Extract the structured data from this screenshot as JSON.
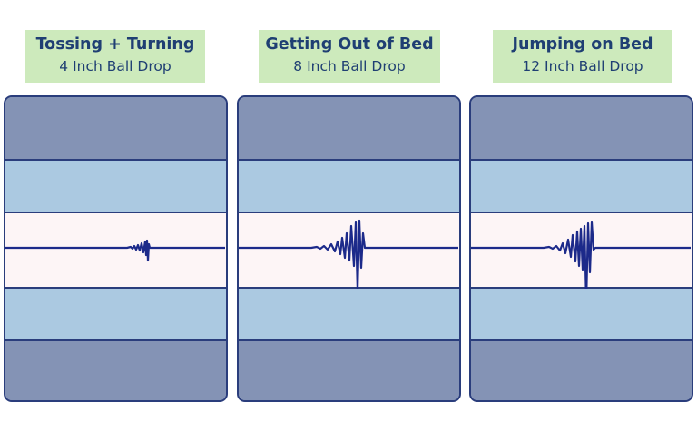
{
  "columns": [
    {
      "title": "Tossing + Turning",
      "subtitle": "4 Inch Ball Drop",
      "intensity": "low"
    },
    {
      "title": "Getting Out of Bed",
      "subtitle": "8 Inch Ball Drop",
      "intensity": "medium"
    },
    {
      "title": "Jumping on Bed",
      "subtitle": "12 Inch Ball Drop",
      "intensity": "high"
    }
  ],
  "colors": {
    "label_bg": "#cdeabc",
    "label_text": "#1f3f73",
    "outline": "#2a3d7c",
    "outer_layer": "#8493b5",
    "mid_layer": "#abc9e1",
    "center_layer": "#fdf5f6",
    "wave": "#1c2a8a"
  }
}
